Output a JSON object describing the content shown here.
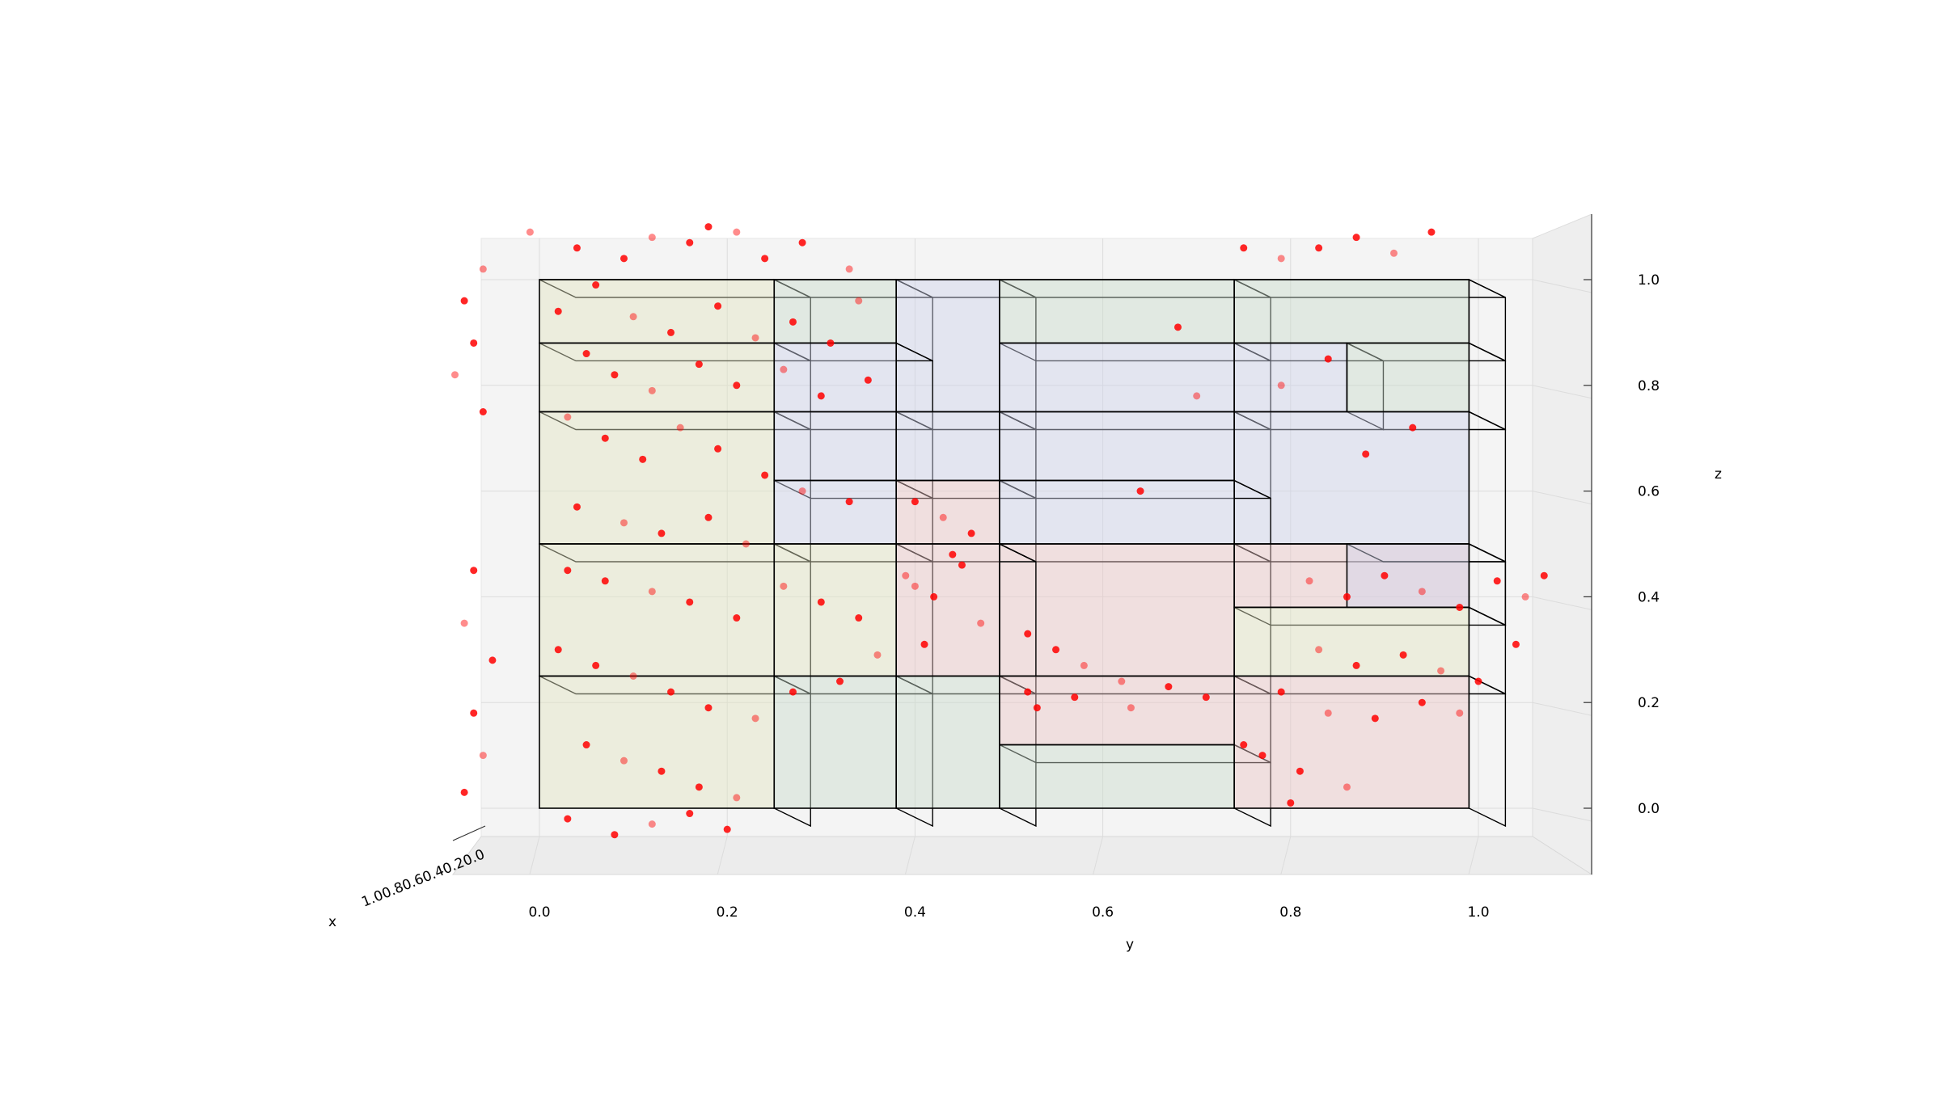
{
  "chart_data": {
    "type": "scatter",
    "projection": "3d",
    "title": "",
    "xlabel": "x",
    "ylabel": "y",
    "zlabel": "z",
    "xlim": [
      0,
      1
    ],
    "ylim": [
      0,
      1
    ],
    "zlim": [
      0,
      1
    ],
    "y_ticks": [
      "0.0",
      "0.2",
      "0.4",
      "0.6",
      "0.8",
      "1.0"
    ],
    "z_ticks": [
      "0.0",
      "0.2",
      "0.4",
      "0.6",
      "0.8",
      "1.0"
    ],
    "x_ticks": [
      "0.0",
      "0.2",
      "0.4",
      "0.6",
      "0.8",
      "1.0"
    ],
    "x_ticks_label_text": "1.00.80.60.40.20.0",
    "grid": true,
    "point_color": "#ff0000",
    "box_colors": {
      "tan": "#e3e4c2",
      "green": "#c9dccc",
      "blue": "#cfd2ec",
      "pink": "#ecc6c6"
    },
    "boxes": [
      {
        "y": [
          0.0,
          0.25
        ],
        "z": [
          0.88,
          1.0
        ],
        "color": "tan"
      },
      {
        "y": [
          0.25,
          0.38
        ],
        "z": [
          0.88,
          1.0
        ],
        "color": "green"
      },
      {
        "y": [
          0.38,
          0.49
        ],
        "z": [
          0.75,
          1.0
        ],
        "color": "blue"
      },
      {
        "y": [
          0.49,
          0.74
        ],
        "z": [
          0.88,
          1.0
        ],
        "color": "green"
      },
      {
        "y": [
          0.74,
          0.99
        ],
        "z": [
          0.88,
          1.0
        ],
        "color": "green"
      },
      {
        "y": [
          0.0,
          0.25
        ],
        "z": [
          0.75,
          0.88
        ],
        "color": "tan"
      },
      {
        "y": [
          0.25,
          0.38
        ],
        "z": [
          0.75,
          0.88
        ],
        "color": "blue"
      },
      {
        "y": [
          0.49,
          0.74
        ],
        "z": [
          0.75,
          0.88
        ],
        "color": "blue"
      },
      {
        "y": [
          0.74,
          0.86
        ],
        "z": [
          0.75,
          0.88
        ],
        "color": "blue"
      },
      {
        "y": [
          0.86,
          0.99
        ],
        "z": [
          0.75,
          0.88
        ],
        "color": "green"
      },
      {
        "y": [
          0.0,
          0.25
        ],
        "z": [
          0.5,
          0.75
        ],
        "color": "tan"
      },
      {
        "y": [
          0.25,
          0.38
        ],
        "z": [
          0.62,
          0.75
        ],
        "color": "blue"
      },
      {
        "y": [
          0.38,
          0.49
        ],
        "z": [
          0.62,
          0.75
        ],
        "color": "blue"
      },
      {
        "y": [
          0.49,
          0.74
        ],
        "z": [
          0.62,
          0.75
        ],
        "color": "blue"
      },
      {
        "y": [
          0.74,
          0.99
        ],
        "z": [
          0.5,
          0.75
        ],
        "color": "blue"
      },
      {
        "y": [
          0.25,
          0.38
        ],
        "z": [
          0.5,
          0.62
        ],
        "color": "blue"
      },
      {
        "y": [
          0.38,
          0.49
        ],
        "z": [
          0.5,
          0.62
        ],
        "color": "pink"
      },
      {
        "y": [
          0.49,
          0.74
        ],
        "z": [
          0.5,
          0.62
        ],
        "color": "blue"
      },
      {
        "y": [
          0.49,
          0.74
        ],
        "z": [
          0.25,
          0.5
        ],
        "color": "pink"
      },
      {
        "y": [
          0.0,
          0.25
        ],
        "z": [
          0.25,
          0.5
        ],
        "color": "tan"
      },
      {
        "y": [
          0.25,
          0.38
        ],
        "z": [
          0.25,
          0.5
        ],
        "color": "tan"
      },
      {
        "y": [
          0.38,
          0.49
        ],
        "z": [
          0.25,
          0.5
        ],
        "color": "pink"
      },
      {
        "y": [
          0.74,
          0.99
        ],
        "z": [
          0.38,
          0.5
        ],
        "color": "pink"
      },
      {
        "y": [
          0.86,
          0.99
        ],
        "z": [
          0.38,
          0.5
        ],
        "color": "blue"
      },
      {
        "y": [
          0.74,
          0.99
        ],
        "z": [
          0.25,
          0.38
        ],
        "color": "tan"
      },
      {
        "y": [
          0.0,
          0.25
        ],
        "z": [
          0.0,
          0.25
        ],
        "color": "tan"
      },
      {
        "y": [
          0.25,
          0.38
        ],
        "z": [
          0.0,
          0.25
        ],
        "color": "green"
      },
      {
        "y": [
          0.38,
          0.49
        ],
        "z": [
          0.0,
          0.25
        ],
        "color": "green"
      },
      {
        "y": [
          0.49,
          0.74
        ],
        "z": [
          0.12,
          0.25
        ],
        "color": "pink"
      },
      {
        "y": [
          0.49,
          0.74
        ],
        "z": [
          0.0,
          0.12
        ],
        "color": "green"
      },
      {
        "y": [
          0.74,
          0.99
        ],
        "z": [
          0.0,
          0.25
        ],
        "color": "pink"
      }
    ],
    "points": [
      {
        "y": -0.01,
        "z": 1.09
      },
      {
        "y": 0.04,
        "z": 1.06
      },
      {
        "y": 0.09,
        "z": 1.04
      },
      {
        "y": 0.12,
        "z": 1.08
      },
      {
        "y": 0.16,
        "z": 1.07
      },
      {
        "y": 0.18,
        "z": 1.1
      },
      {
        "y": 0.21,
        "z": 1.09
      },
      {
        "y": 0.24,
        "z": 1.04
      },
      {
        "y": 0.28,
        "z": 1.07
      },
      {
        "y": 0.33,
        "z": 1.02
      },
      {
        "y": 0.06,
        "z": 0.99
      },
      {
        "y": 0.02,
        "z": 0.94
      },
      {
        "y": 0.1,
        "z": 0.93
      },
      {
        "y": 0.14,
        "z": 0.9
      },
      {
        "y": 0.19,
        "z": 0.95
      },
      {
        "y": 0.23,
        "z": 0.89
      },
      {
        "y": 0.27,
        "z": 0.92
      },
      {
        "y": 0.31,
        "z": 0.88
      },
      {
        "y": 0.34,
        "z": 0.96
      },
      {
        "y": 0.05,
        "z": 0.86
      },
      {
        "y": 0.08,
        "z": 0.82
      },
      {
        "y": 0.12,
        "z": 0.79
      },
      {
        "y": 0.17,
        "z": 0.84
      },
      {
        "y": 0.21,
        "z": 0.8
      },
      {
        "y": 0.26,
        "z": 0.83
      },
      {
        "y": 0.3,
        "z": 0.78
      },
      {
        "y": 0.35,
        "z": 0.81
      },
      {
        "y": 0.03,
        "z": 0.74
      },
      {
        "y": 0.07,
        "z": 0.7
      },
      {
        "y": 0.11,
        "z": 0.66
      },
      {
        "y": 0.15,
        "z": 0.72
      },
      {
        "y": 0.19,
        "z": 0.68
      },
      {
        "y": 0.24,
        "z": 0.63
      },
      {
        "y": 0.28,
        "z": 0.6
      },
      {
        "y": 0.33,
        "z": 0.58
      },
      {
        "y": 0.04,
        "z": 0.57
      },
      {
        "y": 0.09,
        "z": 0.54
      },
      {
        "y": 0.13,
        "z": 0.52
      },
      {
        "y": 0.18,
        "z": 0.55
      },
      {
        "y": 0.22,
        "z": 0.5
      },
      {
        "y": 0.03,
        "z": 0.45
      },
      {
        "y": 0.07,
        "z": 0.43
      },
      {
        "y": 0.12,
        "z": 0.41
      },
      {
        "y": 0.16,
        "z": 0.39
      },
      {
        "y": 0.21,
        "z": 0.36
      },
      {
        "y": 0.26,
        "z": 0.42
      },
      {
        "y": 0.3,
        "z": 0.39
      },
      {
        "y": 0.34,
        "z": 0.36
      },
      {
        "y": 0.39,
        "z": 0.44
      },
      {
        "y": 0.42,
        "z": 0.4
      },
      {
        "y": 0.45,
        "z": 0.46
      },
      {
        "y": 0.47,
        "z": 0.35
      },
      {
        "y": 0.02,
        "z": 0.3
      },
      {
        "y": 0.06,
        "z": 0.27
      },
      {
        "y": 0.1,
        "z": 0.25
      },
      {
        "y": 0.14,
        "z": 0.22
      },
      {
        "y": 0.18,
        "z": 0.19
      },
      {
        "y": 0.23,
        "z": 0.17
      },
      {
        "y": 0.27,
        "z": 0.22
      },
      {
        "y": 0.32,
        "z": 0.24
      },
      {
        "y": 0.36,
        "z": 0.29
      },
      {
        "y": 0.41,
        "z": 0.31
      },
      {
        "y": 0.05,
        "z": 0.12
      },
      {
        "y": 0.09,
        "z": 0.09
      },
      {
        "y": 0.13,
        "z": 0.07
      },
      {
        "y": 0.17,
        "z": 0.04
      },
      {
        "y": 0.21,
        "z": 0.02
      },
      {
        "y": 0.03,
        "z": -0.02
      },
      {
        "y": 0.08,
        "z": -0.05
      },
      {
        "y": 0.12,
        "z": -0.03
      },
      {
        "y": 0.16,
        "z": -0.01
      },
      {
        "y": 0.2,
        "z": -0.04
      },
      {
        "y": -0.06,
        "z": 1.02
      },
      {
        "y": -0.08,
        "z": 0.96
      },
      {
        "y": -0.07,
        "z": 0.88
      },
      {
        "y": -0.09,
        "z": 0.82
      },
      {
        "y": -0.06,
        "z": 0.75
      },
      {
        "y": -0.07,
        "z": 0.45
      },
      {
        "y": -0.08,
        "z": 0.35
      },
      {
        "y": -0.05,
        "z": 0.28
      },
      {
        "y": -0.07,
        "z": 0.18
      },
      {
        "y": -0.06,
        "z": 0.1
      },
      {
        "y": -0.08,
        "z": 0.03
      },
      {
        "y": 0.4,
        "z": 0.58
      },
      {
        "y": 0.43,
        "z": 0.55
      },
      {
        "y": 0.46,
        "z": 0.52
      },
      {
        "y": 0.44,
        "z": 0.48
      },
      {
        "y": 0.4,
        "z": 0.42
      },
      {
        "y": 0.52,
        "z": 0.33
      },
      {
        "y": 0.55,
        "z": 0.3
      },
      {
        "y": 0.58,
        "z": 0.27
      },
      {
        "y": 0.52,
        "z": 0.22
      },
      {
        "y": 0.57,
        "z": 0.21
      },
      {
        "y": 0.62,
        "z": 0.24
      },
      {
        "y": 0.67,
        "z": 0.23
      },
      {
        "y": 0.71,
        "z": 0.21
      },
      {
        "y": 0.63,
        "z": 0.19
      },
      {
        "y": 0.53,
        "z": 0.19
      },
      {
        "y": 0.68,
        "z": 0.91
      },
      {
        "y": 0.7,
        "z": 0.78
      },
      {
        "y": 0.64,
        "z": 0.6
      },
      {
        "y": 0.75,
        "z": 1.06
      },
      {
        "y": 0.79,
        "z": 1.04
      },
      {
        "y": 0.83,
        "z": 1.06
      },
      {
        "y": 0.87,
        "z": 1.08
      },
      {
        "y": 0.91,
        "z": 1.05
      },
      {
        "y": 0.95,
        "z": 1.09
      },
      {
        "y": 0.84,
        "z": 0.85
      },
      {
        "y": 0.79,
        "z": 0.8
      },
      {
        "y": 0.93,
        "z": 0.72
      },
      {
        "y": 0.88,
        "z": 0.67
      },
      {
        "y": 0.82,
        "z": 0.43
      },
      {
        "y": 0.86,
        "z": 0.4
      },
      {
        "y": 0.9,
        "z": 0.44
      },
      {
        "y": 0.94,
        "z": 0.41
      },
      {
        "y": 0.98,
        "z": 0.38
      },
      {
        "y": 1.02,
        "z": 0.43
      },
      {
        "y": 1.05,
        "z": 0.4
      },
      {
        "y": 1.07,
        "z": 0.44
      },
      {
        "y": 1.04,
        "z": 0.31
      },
      {
        "y": 0.83,
        "z": 0.3
      },
      {
        "y": 0.87,
        "z": 0.27
      },
      {
        "y": 0.92,
        "z": 0.29
      },
      {
        "y": 0.96,
        "z": 0.26
      },
      {
        "y": 1.0,
        "z": 0.24
      },
      {
        "y": 0.79,
        "z": 0.22
      },
      {
        "y": 0.84,
        "z": 0.18
      },
      {
        "y": 0.89,
        "z": 0.17
      },
      {
        "y": 0.94,
        "z": 0.2
      },
      {
        "y": 0.98,
        "z": 0.18
      },
      {
        "y": 0.77,
        "z": 0.1
      },
      {
        "y": 0.81,
        "z": 0.07
      },
      {
        "y": 0.86,
        "z": 0.04
      },
      {
        "y": 0.8,
        "z": 0.01
      },
      {
        "y": 0.75,
        "z": 0.12
      }
    ]
  }
}
